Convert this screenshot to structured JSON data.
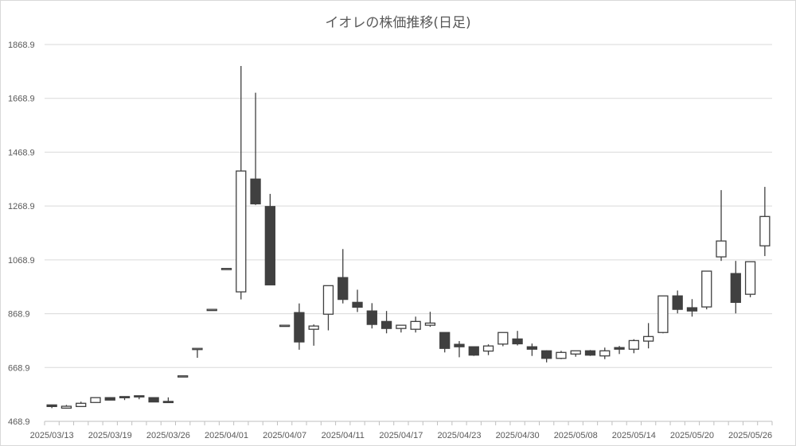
{
  "chart_data": {
    "type": "candlestick",
    "title": "イオレの株価推移(日足)",
    "xlabel": "",
    "ylabel": "",
    "ylim": [
      468.9,
      1868.9
    ],
    "yticks": [
      "468.9",
      "668.9",
      "868.9",
      "1068.9",
      "1268.9",
      "1468.9",
      "1668.9",
      "1868.9"
    ],
    "grid": true,
    "colors": {
      "up_fill": "#ffffff",
      "down_fill": "#404040",
      "line": "#404040",
      "grid": "#d9d9d9",
      "text": "#595959"
    },
    "xtick_labels": [
      "2025/03/13",
      "2025/03/19",
      "2025/03/26",
      "2025/04/01",
      "2025/04/07",
      "2025/04/11",
      "2025/04/17",
      "2025/04/23",
      "2025/04/30",
      "2025/05/08",
      "2025/05/14",
      "2025/05/20",
      "2025/05/26"
    ],
    "dates": [
      "2025/03/13",
      "2025/03/14",
      "2025/03/17",
      "2025/03/18",
      "2025/03/19",
      "2025/03/21",
      "2025/03/24",
      "2025/03/25",
      "2025/03/26",
      "2025/03/27",
      "2025/03/28",
      "2025/03/31",
      "2025/04/01",
      "2025/04/02",
      "2025/04/03",
      "2025/04/04",
      "2025/04/07",
      "2025/04/08",
      "2025/04/09",
      "2025/04/10",
      "2025/04/11",
      "2025/04/14",
      "2025/04/15",
      "2025/04/16",
      "2025/04/17",
      "2025/04/18",
      "2025/04/21",
      "2025/04/22",
      "2025/04/23",
      "2025/04/24",
      "2025/04/25",
      "2025/04/28",
      "2025/04/30",
      "2025/05/01",
      "2025/05/02",
      "2025/05/07",
      "2025/05/08",
      "2025/05/09",
      "2025/05/12",
      "2025/05/13",
      "2025/05/14",
      "2025/05/15",
      "2025/05/16",
      "2025/05/19",
      "2025/05/20",
      "2025/05/21",
      "2025/05/22",
      "2025/05/23",
      "2025/05/26",
      "2025/05/27"
    ],
    "ohlc": [
      [
        530,
        531,
        518,
        524
      ],
      [
        518,
        530,
        516,
        525
      ],
      [
        524,
        542,
        523,
        536
      ],
      [
        539,
        557,
        538,
        557
      ],
      [
        557,
        558,
        547,
        548
      ],
      [
        561,
        562,
        548,
        557
      ],
      [
        564,
        565,
        551,
        560
      ],
      [
        557,
        557,
        540,
        541
      ],
      [
        543,
        558,
        541,
        541
      ],
      [
        638,
        638,
        638,
        638
      ],
      [
        740,
        740,
        705,
        740
      ],
      [
        885,
        885,
        885,
        885
      ],
      [
        1037,
        1037,
        1037,
        1037
      ],
      [
        950,
        1789,
        922,
        1399
      ],
      [
        1369,
        1690,
        1273,
        1277
      ],
      [
        1267,
        1314,
        976,
        976
      ],
      [
        826,
        826,
        826,
        826
      ],
      [
        873,
        907,
        735,
        764
      ],
      [
        811,
        829,
        750,
        823
      ],
      [
        867,
        973,
        807,
        973
      ],
      [
        1003,
        1109,
        907,
        922
      ],
      [
        911,
        958,
        875,
        893
      ],
      [
        879,
        908,
        814,
        829
      ],
      [
        840,
        879,
        796,
        814
      ],
      [
        814,
        826,
        799,
        826
      ],
      [
        811,
        858,
        799,
        840
      ],
      [
        826,
        876,
        820,
        834
      ],
      [
        799,
        799,
        725,
        740
      ],
      [
        755,
        767,
        707,
        746
      ],
      [
        746,
        746,
        712,
        715
      ],
      [
        730,
        755,
        715,
        749
      ],
      [
        756,
        799,
        748,
        799
      ],
      [
        775,
        805,
        751,
        757
      ],
      [
        746,
        758,
        712,
        737
      ],
      [
        731,
        733,
        688,
        703
      ],
      [
        703,
        731,
        700,
        725
      ],
      [
        719,
        731,
        709,
        731
      ],
      [
        731,
        734,
        712,
        715
      ],
      [
        712,
        743,
        700,
        731
      ],
      [
        743,
        749,
        719,
        737
      ],
      [
        737,
        774,
        722,
        769
      ],
      [
        767,
        834,
        740,
        784
      ],
      [
        799,
        935,
        796,
        935
      ],
      [
        935,
        955,
        870,
        885
      ],
      [
        891,
        923,
        858,
        879
      ],
      [
        894,
        1027,
        885,
        1027
      ],
      [
        1080,
        1328,
        1065,
        1139
      ],
      [
        1018,
        1065,
        870,
        911
      ],
      [
        941,
        1062,
        930,
        1062
      ],
      [
        1121,
        1340,
        1083,
        1230
      ]
    ]
  }
}
